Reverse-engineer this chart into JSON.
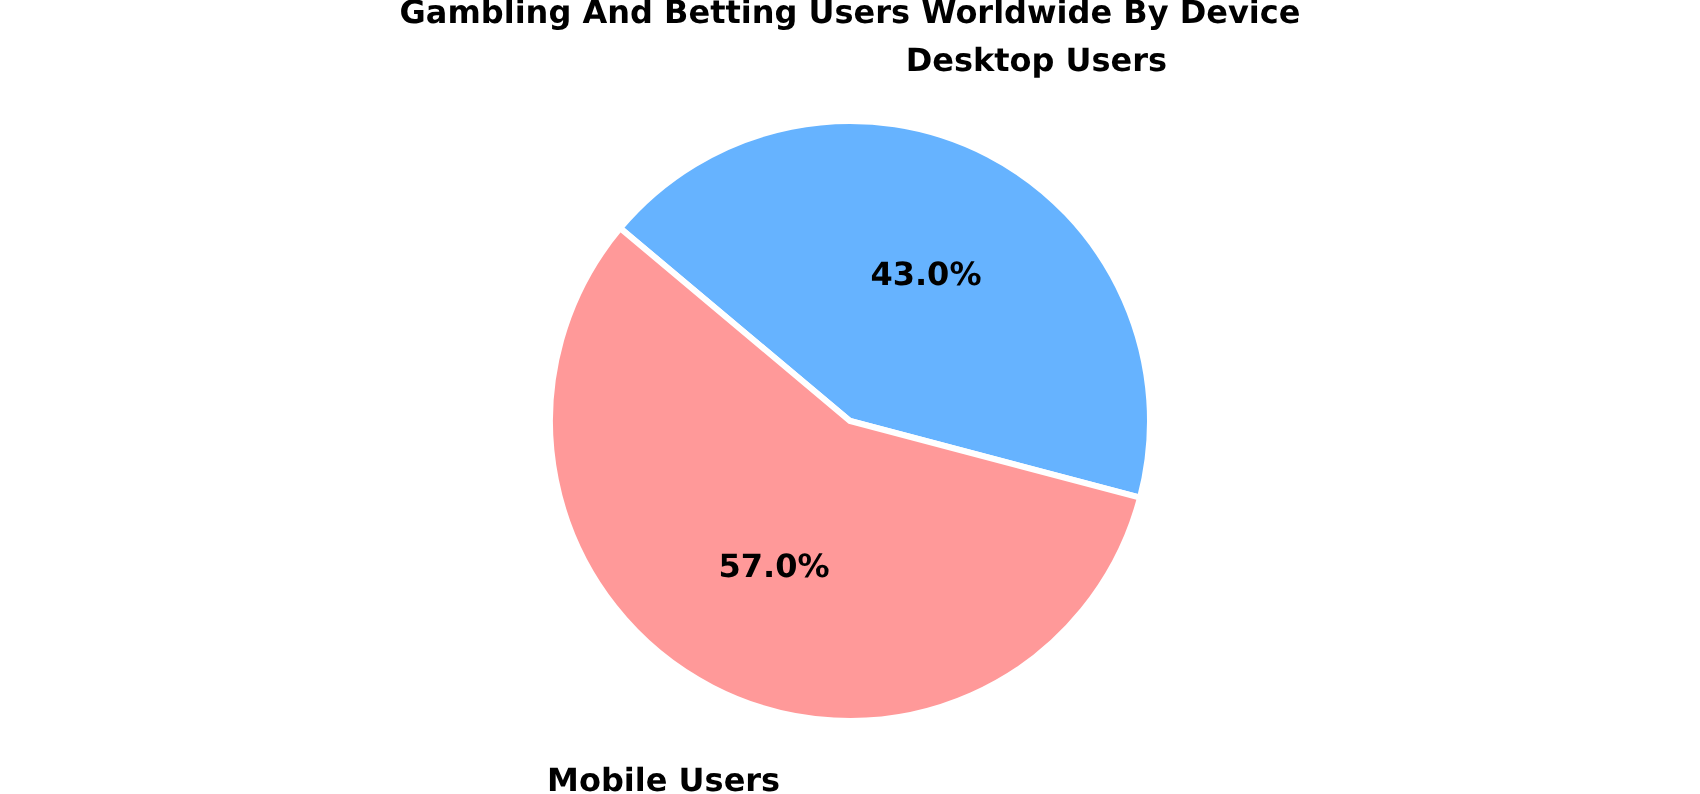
{
  "chart_data": {
    "type": "pie",
    "title": "Gambling And Betting Users Worldwide By Device",
    "categories": [
      "Desktop Users",
      "Mobile Users"
    ],
    "values": [
      43.0,
      57.0
    ],
    "value_labels": [
      "43.0%",
      "57.0%"
    ],
    "colors": [
      "#66b3ff",
      "#ff9999"
    ],
    "legend": false
  }
}
